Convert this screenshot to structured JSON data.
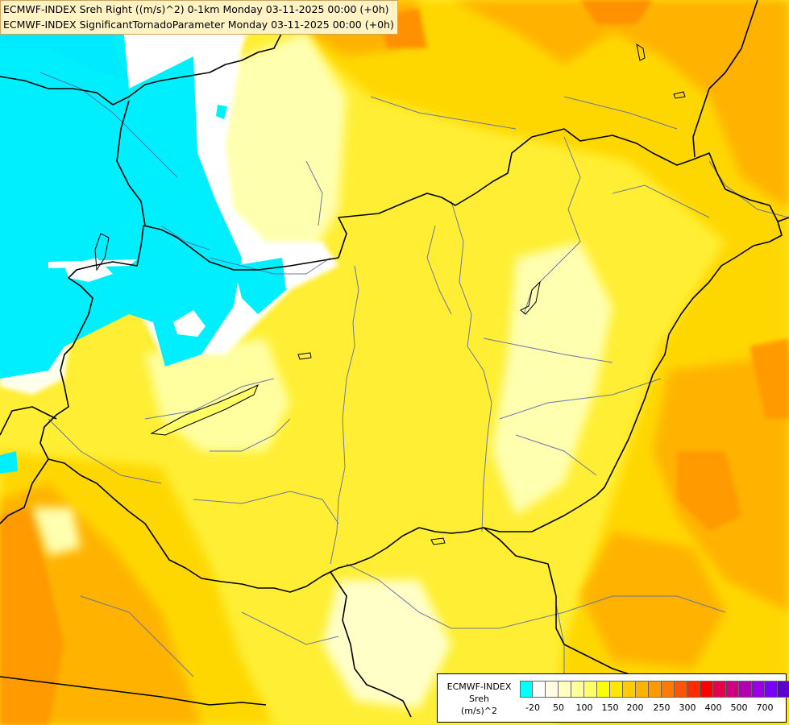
{
  "titles": {
    "line1": "ECMWF-INDEX Sreh Right ((m/s)^2) 0-1km Monday 03-11-2025 00:00 (+0h)",
    "line2": "ECMWF-INDEX SignificantTornadoParameter Monday 03-11-2025 00:00 (+0h)"
  },
  "legend": {
    "source": "ECMWF-INDEX",
    "parameter": "Sreh",
    "unit": "(m/s)^2",
    "swatch_colors": [
      "#00ffff",
      "#ffffff",
      "#fffbe0",
      "#ffffc0",
      "#ffff99",
      "#ffff66",
      "#ffff00",
      "#ffe600",
      "#ffcc00",
      "#ffb300",
      "#ff9900",
      "#ff7a00",
      "#ff5500",
      "#ff2b00",
      "#ff0000",
      "#e6004d",
      "#cc0080",
      "#b300b3",
      "#9900e6",
      "#7a00ff",
      "#5c00cc",
      "#3d0099",
      "#1f0066"
    ],
    "tick_labels": [
      "-20",
      "50",
      "100",
      "150",
      "200",
      "250",
      "300",
      "400",
      "500",
      "700"
    ]
  },
  "colors": {
    "cyan_region": "#00e8ff",
    "white_region": "#ffffff",
    "pale_yellow": "#ffffa0",
    "yellow": "#ffff33",
    "gold": "#ffd700",
    "orange": "#ffb000",
    "dark_orange": "#ff9000",
    "country_border": "#000000",
    "river": "#5a6aa0"
  }
}
